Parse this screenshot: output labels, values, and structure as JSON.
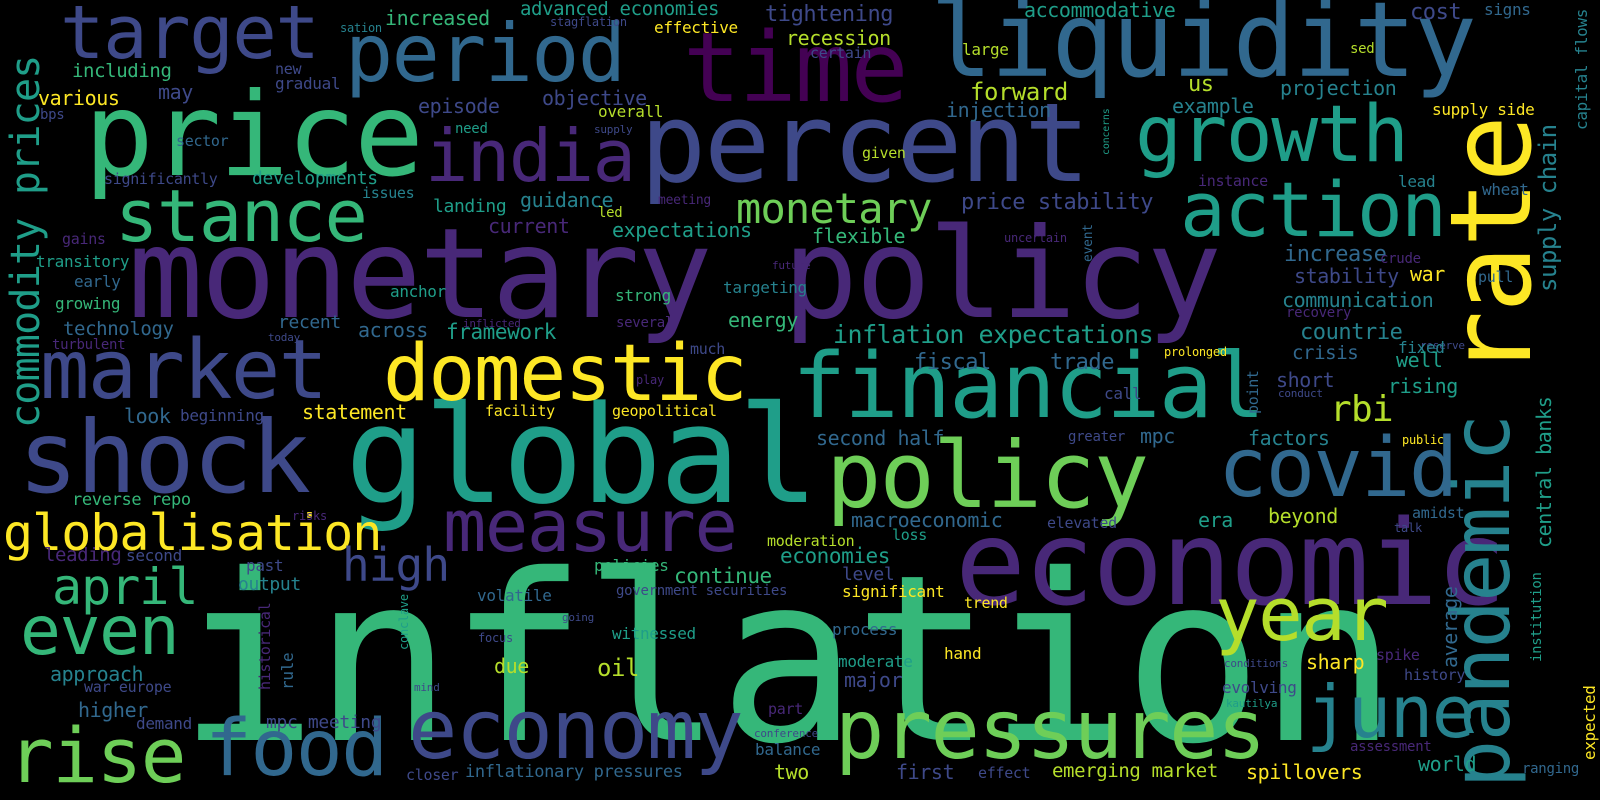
{
  "palette": {
    "yellow": "#fde725",
    "lime": "#b5de2b",
    "lightgreen": "#6ece58",
    "green": "#35b779",
    "teal": "#1f9e89",
    "cyan": "#26828e",
    "blue": "#31688e",
    "indigo": "#3e4989",
    "purple": "#482878",
    "darkpurple": "#440154"
  },
  "words": {
    "inflation": "inflation",
    "monetary_policy": "monetary policy",
    "global": "global",
    "economic": "economic",
    "price": "price",
    "percent": "percent",
    "liquidity": "liquidity",
    "rate": "rate",
    "pandemic": "pandemic",
    "time": "time",
    "period": "period",
    "target": "target",
    "india": "india",
    "growth": "growth",
    "stance": "stance",
    "action": "action",
    "market": "market",
    "domestic": "domestic",
    "financial": "financial",
    "shock": "shock",
    "policy": "policy",
    "covid": "covid",
    "measure": "measure",
    "globalisation": "globalisation",
    "year": "year",
    "economy": "economy",
    "pressures": "pressures",
    "june": "june",
    "food": "food",
    "rise": "rise",
    "even": "even",
    "april": "april",
    "high": "high",
    "monetary": "monetary",
    "rbi": "rbi",
    "commodity_prices": "commodity prices",
    "supply_chain": "supply chain",
    "central_banks": "central banks",
    "capital_flows": "capital flows",
    "inflation_expectations": "inflation expectations",
    "increased": "increased",
    "advanced_economies": "advanced economies",
    "stagflation": "stagflation",
    "accommodative": "accommodative",
    "cost": "cost",
    "signs": "signs",
    "sation": "sation",
    "effective": "effective",
    "including": "including",
    "new": "new",
    "gradual": "gradual",
    "tightening": "tightening",
    "recession": "recession",
    "certain": "certain",
    "large": "large",
    "sed": "sed",
    "various": "various",
    "may": "may",
    "forward": "forward",
    "us": "us",
    "projection": "projection",
    "bps": "bps",
    "episode": "episode",
    "objective": "objective",
    "overall": "overall",
    "injection": "injection",
    "example": "example",
    "supply_side": "supply side",
    "need": "need",
    "supply": "supply",
    "sector": "sector",
    "concerns": "concerns",
    "given": "given",
    "significantly": "significantly",
    "developments": "developments",
    "issues": "issues",
    "instance": "instance",
    "lead": "lead",
    "wheat": "wheat",
    "guidance": "guidance",
    "meeting": "meeting",
    "price_stability": "price stability",
    "landing": "landing",
    "led": "led",
    "gains": "gains",
    "current": "current",
    "expectations": "expectations",
    "flexible": "flexible",
    "uncertain": "uncertain",
    "event": "event",
    "increase": "increase",
    "crude": "crude",
    "transitory": "transitory",
    "future": "future",
    "stability": "stability",
    "war": "war",
    "pull": "pull",
    "early": "early",
    "anchor": "anchor",
    "targeting": "targeting",
    "growing": "growing",
    "strong": "strong",
    "communication": "communication",
    "recovery": "recovery",
    "technology": "technology",
    "inflicted": "inflicted",
    "several": "several",
    "energy": "energy",
    "countrie": "countrie",
    "recent": "recent",
    "across": "across",
    "framework": "framework",
    "turbulent": "turbulent",
    "today": "today",
    "reserve": "reserve",
    "fixed": "fixed",
    "crisis": "crisis",
    "much": "much",
    "prolonged": "prolonged",
    "well": "well",
    "fiscal": "fiscal",
    "trade": "trade",
    "short": "short",
    "rising": "rising",
    "play": "play",
    "call": "call",
    "point": "point",
    "conduct": "conduct",
    "look": "look",
    "beginning": "beginning",
    "statement": "statement",
    "facility": "facility",
    "geopolitical": "geopolitical",
    "second_half": "second half",
    "greater": "greater",
    "mpc": "mpc",
    "factors": "factors",
    "public": "public",
    "reverse_repo": "reverse repo",
    "risks": "risks",
    "macroeconomic": "macroeconomic",
    "elevated": "elevated",
    "era": "era",
    "beyond": "beyond",
    "amidst": "amidst",
    "talk": "talk",
    "loss": "loss",
    "leading": "leading",
    "second": "second",
    "moderation": "moderation",
    "economies": "economies",
    "past": "past",
    "level": "level",
    "policies": "policies",
    "continue": "continue",
    "output": "output",
    "government_securities": "government securities",
    "significant": "significant",
    "trend": "trend",
    "average": "average",
    "institution": "institution",
    "historical": "historical",
    "conclave": "conclave",
    "volatile": "volatile",
    "going": "going",
    "witnessed": "witnessed",
    "process": "process",
    "rule": "rule",
    "focus": "focus",
    "approach": "approach",
    "due": "due",
    "oil": "oil",
    "moderate": "moderate",
    "hand": "hand",
    "conditions": "conditions",
    "sharp": "sharp",
    "spike": "spike",
    "war_europe": "war europe",
    "mind": "mind",
    "major": "major",
    "evolving": "evolving",
    "history": "history",
    "higher": "higher",
    "kautilya": "kautilya",
    "expected": "expected",
    "demand": "demand",
    "part": "part",
    "mpc_meeting": "mpc meeting",
    "conference": "conference",
    "assessment": "assessment",
    "balance": "balance",
    "closer": "closer",
    "inflationary_pressures": "inflationary pressures",
    "two": "two",
    "first": "first",
    "effect": "effect",
    "emerging_market": "emerging market",
    "spillovers": "spillovers",
    "world": "world",
    "ranging": "ranging"
  }
}
